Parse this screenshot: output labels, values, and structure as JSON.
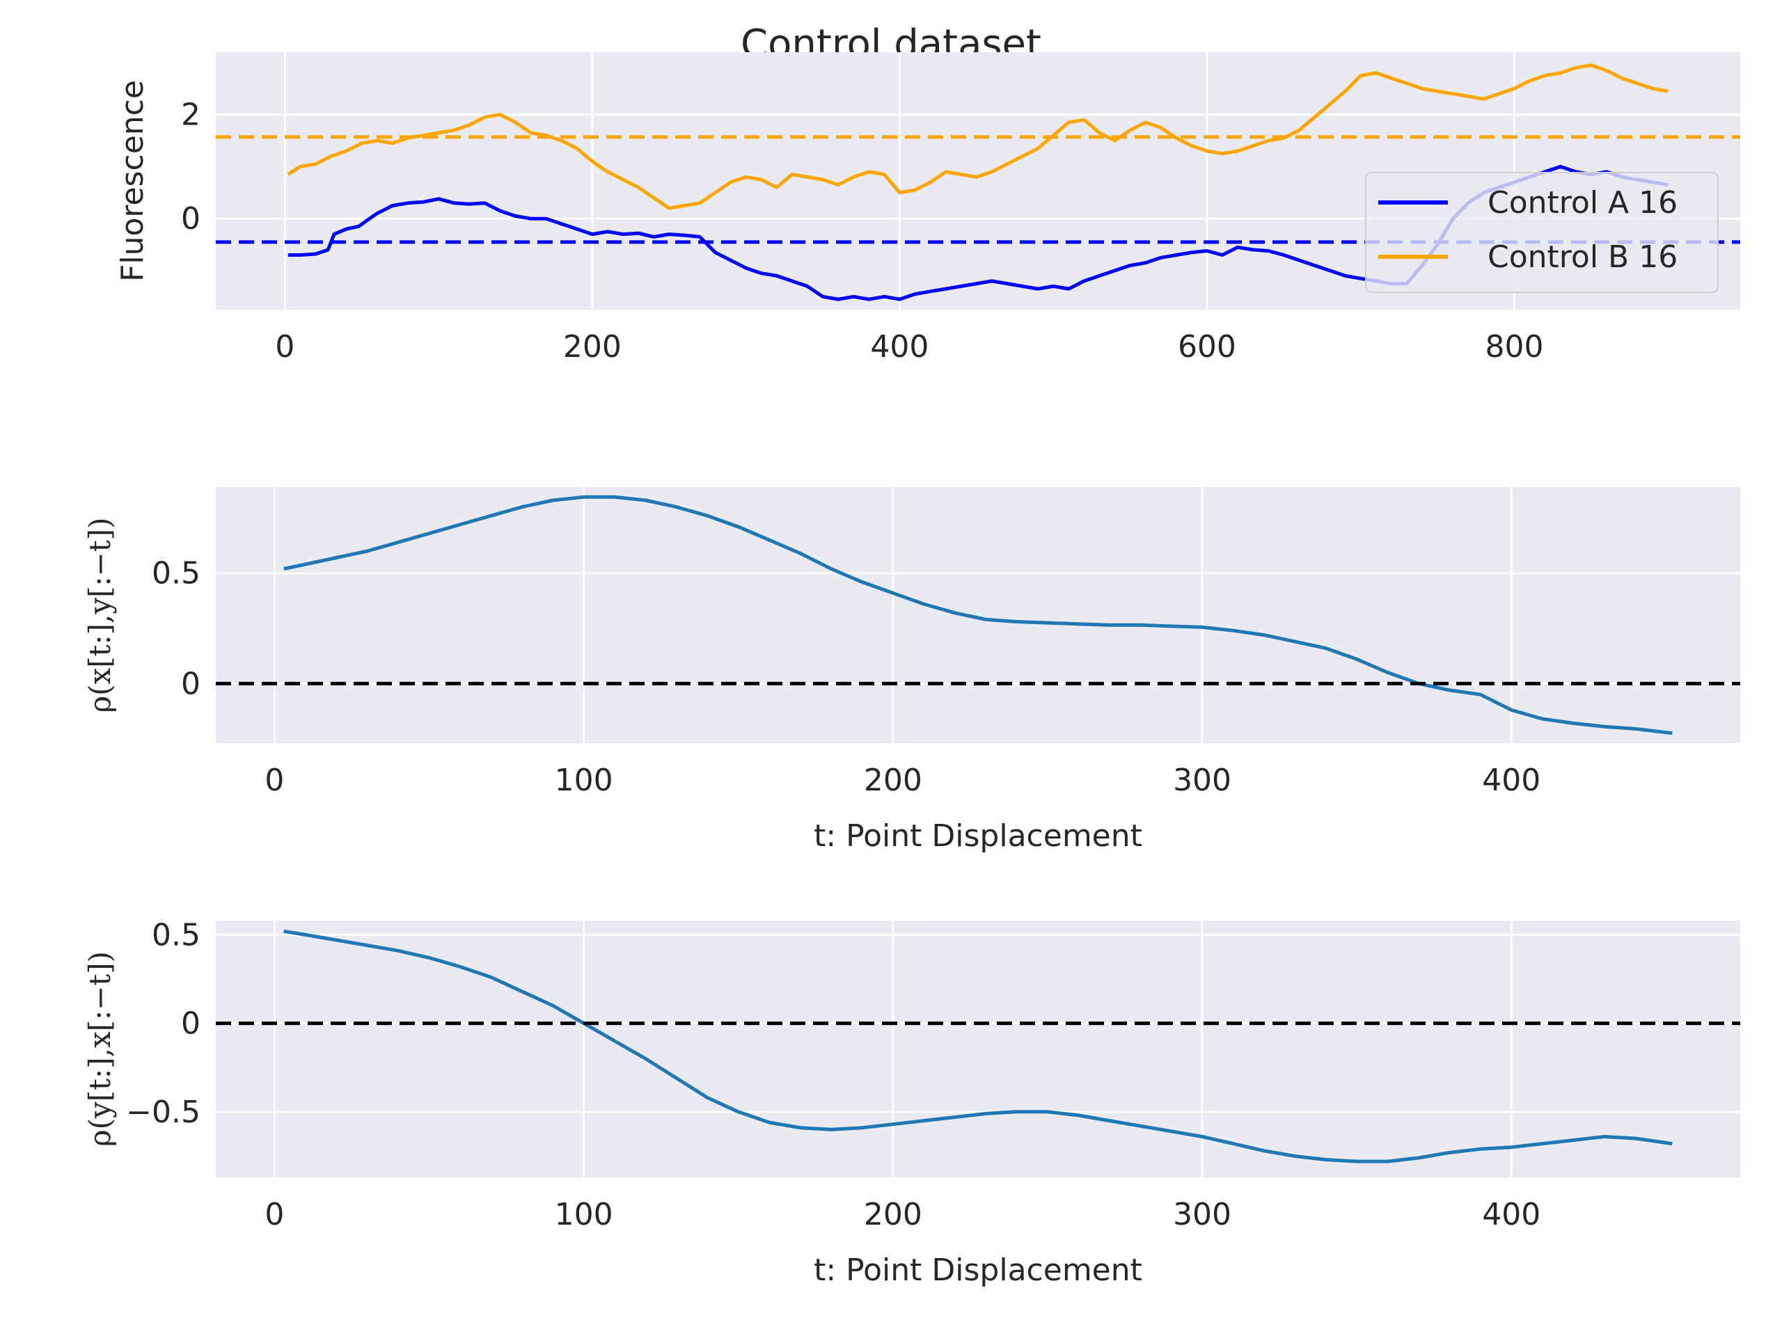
{
  "figure": {
    "title": "Control dataset"
  },
  "colors": {
    "axes_bg": "#EAEAF2",
    "grid": "#FFFFFF",
    "text": "#262626",
    "series_a": "#0000FF",
    "series_b": "#FFA500",
    "correlation": "#1F77B4",
    "zero_line": "#000000"
  },
  "chart_data": [
    {
      "type": "line",
      "title": "",
      "xlabel": "",
      "ylabel": "Fluorescence",
      "xlim": [
        -45,
        947
      ],
      "ylim": [
        -1.75,
        3.2
      ],
      "xticks": [
        0,
        200,
        400,
        600,
        800
      ],
      "yticks": [
        0,
        2
      ],
      "grid": true,
      "legend": {
        "placement": "right",
        "entries": [
          "Control A 16",
          "Control B 16"
        ]
      },
      "hlines": [
        {
          "y": -0.45,
          "style": "dashed",
          "color": "#0000FF"
        },
        {
          "y": 1.57,
          "style": "dashed",
          "color": "#FFA500"
        }
      ],
      "series": [
        {
          "name": "Control A 16",
          "color": "#0000FF",
          "x": [
            2,
            10,
            20,
            28,
            32,
            40,
            48,
            55,
            60,
            70,
            80,
            90,
            100,
            110,
            120,
            130,
            140,
            150,
            160,
            170,
            180,
            190,
            200,
            210,
            220,
            230,
            240,
            250,
            260,
            270,
            280,
            290,
            300,
            310,
            320,
            330,
            340,
            350,
            360,
            370,
            380,
            390,
            400,
            410,
            420,
            430,
            440,
            450,
            460,
            470,
            480,
            490,
            500,
            510,
            520,
            530,
            540,
            550,
            560,
            570,
            580,
            590,
            600,
            610,
            620,
            630,
            640,
            650,
            660,
            670,
            680,
            690,
            700,
            710,
            720,
            730,
            740,
            750,
            760,
            770,
            780,
            790,
            800,
            810,
            820,
            830,
            840,
            850,
            860,
            870,
            880,
            890,
            900
          ],
          "y": [
            -0.7,
            -0.7,
            -0.68,
            -0.6,
            -0.3,
            -0.2,
            -0.15,
            0.0,
            0.1,
            0.25,
            0.3,
            0.32,
            0.38,
            0.3,
            0.28,
            0.3,
            0.15,
            0.05,
            0.0,
            0.0,
            -0.1,
            -0.2,
            -0.3,
            -0.25,
            -0.3,
            -0.28,
            -0.35,
            -0.3,
            -0.32,
            -0.35,
            -0.65,
            -0.8,
            -0.95,
            -1.05,
            -1.1,
            -1.2,
            -1.3,
            -1.5,
            -1.55,
            -1.5,
            -1.55,
            -1.5,
            -1.55,
            -1.45,
            -1.4,
            -1.35,
            -1.3,
            -1.25,
            -1.2,
            -1.25,
            -1.3,
            -1.35,
            -1.3,
            -1.35,
            -1.2,
            -1.1,
            -1.0,
            -0.9,
            -0.85,
            -0.75,
            -0.7,
            -0.65,
            -0.62,
            -0.7,
            -0.55,
            -0.6,
            -0.62,
            -0.7,
            -0.8,
            -0.9,
            -1.0,
            -1.1,
            -1.15,
            -1.2,
            -1.25,
            -1.25,
            -0.9,
            -0.5,
            0.0,
            0.3,
            0.5,
            0.6,
            0.7,
            0.8,
            0.9,
            1.0,
            0.9,
            0.85,
            0.9,
            0.8,
            0.75,
            0.7,
            0.65
          ]
        },
        {
          "name": "Control B 16",
          "color": "#FFA500",
          "x": [
            2,
            10,
            20,
            30,
            40,
            50,
            60,
            70,
            80,
            90,
            100,
            110,
            120,
            130,
            140,
            150,
            160,
            170,
            180,
            190,
            200,
            210,
            220,
            230,
            240,
            250,
            260,
            270,
            280,
            290,
            300,
            310,
            320,
            330,
            340,
            350,
            360,
            370,
            380,
            390,
            400,
            410,
            420,
            430,
            440,
            450,
            460,
            470,
            480,
            490,
            500,
            510,
            520,
            530,
            540,
            550,
            560,
            570,
            580,
            590,
            600,
            610,
            620,
            630,
            640,
            650,
            660,
            670,
            680,
            690,
            700,
            710,
            720,
            730,
            740,
            750,
            760,
            770,
            780,
            790,
            800,
            810,
            820,
            830,
            840,
            850,
            860,
            870,
            880,
            890,
            900
          ],
          "y": [
            0.85,
            1.0,
            1.05,
            1.2,
            1.3,
            1.45,
            1.5,
            1.45,
            1.55,
            1.6,
            1.65,
            1.7,
            1.8,
            1.95,
            2.0,
            1.85,
            1.65,
            1.6,
            1.5,
            1.35,
            1.1,
            0.9,
            0.75,
            0.6,
            0.4,
            0.2,
            0.25,
            0.3,
            0.5,
            0.7,
            0.8,
            0.75,
            0.6,
            0.85,
            0.8,
            0.75,
            0.65,
            0.8,
            0.9,
            0.85,
            0.5,
            0.55,
            0.7,
            0.9,
            0.85,
            0.8,
            0.9,
            1.05,
            1.2,
            1.35,
            1.6,
            1.85,
            1.9,
            1.65,
            1.5,
            1.7,
            1.85,
            1.75,
            1.55,
            1.4,
            1.3,
            1.25,
            1.3,
            1.4,
            1.5,
            1.55,
            1.7,
            1.95,
            2.2,
            2.45,
            2.75,
            2.8,
            2.7,
            2.6,
            2.5,
            2.45,
            2.4,
            2.35,
            2.3,
            2.4,
            2.5,
            2.65,
            2.75,
            2.8,
            2.9,
            2.95,
            2.85,
            2.7,
            2.6,
            2.5,
            2.45
          ]
        }
      ]
    },
    {
      "type": "line",
      "title": "",
      "xlabel": "t: Point Displacement",
      "ylabel": "ρ(x[t:],y[:−t])",
      "xlim": [
        -19,
        474
      ],
      "ylim": [
        -0.27,
        0.89
      ],
      "xticks": [
        0,
        100,
        200,
        300,
        400
      ],
      "yticks": [
        0.0,
        0.5
      ],
      "grid": true,
      "hlines": [
        {
          "y": 0.0,
          "style": "dashed",
          "color": "#000000"
        }
      ],
      "series": [
        {
          "color": "#1F77B4",
          "x": [
            3,
            10,
            20,
            30,
            40,
            50,
            60,
            70,
            80,
            90,
            100,
            110,
            120,
            130,
            140,
            150,
            160,
            170,
            180,
            190,
            200,
            210,
            220,
            230,
            240,
            250,
            260,
            270,
            280,
            290,
            300,
            310,
            320,
            330,
            340,
            350,
            360,
            370,
            380,
            390,
            400,
            410,
            420,
            430,
            440,
            452
          ],
          "y": [
            0.52,
            0.54,
            0.57,
            0.6,
            0.64,
            0.68,
            0.72,
            0.76,
            0.8,
            0.83,
            0.845,
            0.845,
            0.83,
            0.8,
            0.76,
            0.71,
            0.65,
            0.59,
            0.52,
            0.46,
            0.41,
            0.36,
            0.32,
            0.29,
            0.28,
            0.275,
            0.27,
            0.265,
            0.265,
            0.26,
            0.255,
            0.24,
            0.22,
            0.19,
            0.16,
            0.11,
            0.05,
            0.0,
            -0.03,
            -0.05,
            -0.12,
            -0.16,
            -0.18,
            -0.195,
            -0.205,
            -0.225
          ]
        }
      ]
    },
    {
      "type": "line",
      "title": "",
      "xlabel": "t: Point Displacement",
      "ylabel": "ρ(y[t:],x[:−t])",
      "xlim": [
        -19,
        474
      ],
      "ylim": [
        -0.87,
        0.58
      ],
      "xticks": [
        0,
        100,
        200,
        300,
        400
      ],
      "yticks": [
        -0.5,
        0.0,
        0.5
      ],
      "grid": true,
      "hlines": [
        {
          "y": 0.0,
          "style": "dashed",
          "color": "#000000"
        }
      ],
      "series": [
        {
          "color": "#1F77B4",
          "x": [
            3,
            10,
            20,
            30,
            40,
            50,
            60,
            70,
            80,
            90,
            100,
            110,
            120,
            130,
            140,
            150,
            160,
            170,
            180,
            190,
            200,
            210,
            220,
            230,
            240,
            250,
            260,
            270,
            280,
            290,
            300,
            310,
            320,
            330,
            340,
            350,
            360,
            370,
            380,
            390,
            400,
            410,
            420,
            430,
            440,
            452
          ],
          "y": [
            0.52,
            0.5,
            0.47,
            0.44,
            0.41,
            0.37,
            0.32,
            0.26,
            0.18,
            0.1,
            0.0,
            -0.1,
            -0.2,
            -0.31,
            -0.42,
            -0.5,
            -0.56,
            -0.59,
            -0.6,
            -0.59,
            -0.57,
            -0.55,
            -0.53,
            -0.51,
            -0.5,
            -0.5,
            -0.52,
            -0.55,
            -0.58,
            -0.61,
            -0.64,
            -0.68,
            -0.72,
            -0.75,
            -0.77,
            -0.78,
            -0.78,
            -0.76,
            -0.73,
            -0.71,
            -0.7,
            -0.68,
            -0.66,
            -0.64,
            -0.65,
            -0.68
          ]
        }
      ]
    }
  ]
}
